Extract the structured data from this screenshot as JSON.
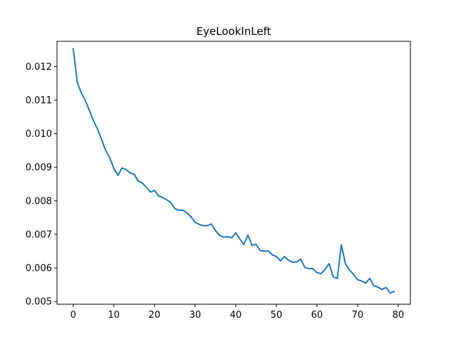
{
  "chart_data": {
    "type": "line",
    "title": "EyeLookInLeft",
    "xlabel": "",
    "ylabel": "",
    "xlim": [
      -4,
      83
    ],
    "ylim": [
      0.00492,
      0.01275
    ],
    "x_ticks": [
      0,
      10,
      20,
      30,
      40,
      50,
      60,
      70,
      80
    ],
    "x_tick_labels": [
      "0",
      "10",
      "20",
      "30",
      "40",
      "50",
      "60",
      "70",
      "80"
    ],
    "y_ticks": [
      0.005,
      0.006,
      0.007,
      0.008,
      0.009,
      0.01,
      0.011,
      0.012
    ],
    "y_tick_labels": [
      "0.005",
      "0.006",
      "0.007",
      "0.008",
      "0.009",
      "0.010",
      "0.011",
      "0.012"
    ],
    "grid": false,
    "legend": "none",
    "series": [
      {
        "color": "#1f77b4",
        "x": [
          0,
          1,
          2,
          3,
          4,
          5,
          6,
          7,
          8,
          9,
          10,
          11,
          12,
          13,
          14,
          15,
          16,
          17,
          18,
          19,
          20,
          21,
          22,
          23,
          24,
          25,
          26,
          27,
          28,
          29,
          30,
          31,
          32,
          33,
          34,
          35,
          36,
          37,
          38,
          39,
          40,
          41,
          42,
          43,
          44,
          45,
          46,
          47,
          48,
          49,
          50,
          51,
          52,
          53,
          54,
          55,
          56,
          57,
          58,
          59,
          60,
          61,
          62,
          63,
          64,
          65,
          66,
          67,
          68,
          69,
          70,
          71,
          72,
          73,
          74,
          75,
          76,
          77,
          78,
          79
        ],
        "values": [
          0.01253,
          0.01152,
          0.01121,
          0.01098,
          0.01068,
          0.01038,
          0.01013,
          0.00982,
          0.0095,
          0.00928,
          0.00896,
          0.00876,
          0.00898,
          0.00893,
          0.00883,
          0.00879,
          0.00859,
          0.00853,
          0.0084,
          0.00826,
          0.00831,
          0.00815,
          0.0081,
          0.00803,
          0.00795,
          0.00777,
          0.00772,
          0.00772,
          0.00764,
          0.00752,
          0.00736,
          0.0073,
          0.00726,
          0.00726,
          0.00731,
          0.00712,
          0.00697,
          0.00692,
          0.00693,
          0.0069,
          0.00705,
          0.00686,
          0.0067,
          0.00698,
          0.00667,
          0.00671,
          0.00652,
          0.0065,
          0.00651,
          0.00639,
          0.00634,
          0.00621,
          0.00634,
          0.00623,
          0.00617,
          0.00618,
          0.00626,
          0.00602,
          0.00598,
          0.00598,
          0.00586,
          0.00583,
          0.00596,
          0.00613,
          0.00573,
          0.00569,
          0.00669,
          0.00613,
          0.00594,
          0.00581,
          0.00565,
          0.00561,
          0.00555,
          0.00569,
          0.00547,
          0.00543,
          0.00536,
          0.00542,
          0.00525,
          0.0053
        ]
      }
    ]
  }
}
